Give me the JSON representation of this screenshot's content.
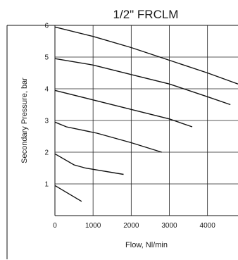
{
  "chart_data": {
    "type": "line",
    "title": "1/2\" FRCLM",
    "xlabel": "Flow, Nl/min",
    "ylabel": "Secondary Pressure, bar",
    "xlim": [
      0,
      4800
    ],
    "ylim": [
      0,
      6
    ],
    "x_ticks": [
      "0",
      "1000",
      "2000",
      "3000",
      "4000"
    ],
    "y_ticks": [
      "1",
      "2",
      "3",
      "4",
      "5",
      "6"
    ],
    "x_tick_values": [
      0,
      1000,
      2000,
      3000,
      4000
    ],
    "y_tick_values": [
      1,
      2,
      3,
      4,
      5,
      6
    ],
    "grid": true,
    "series": [
      {
        "x": [
          0,
          700
        ],
        "y": [
          0.95,
          0.45
        ]
      },
      {
        "x": [
          0,
          500,
          800,
          1800
        ],
        "y": [
          1.95,
          1.6,
          1.5,
          1.3
        ]
      },
      {
        "x": [
          0,
          300,
          1100,
          2000,
          2800
        ],
        "y": [
          2.95,
          2.8,
          2.6,
          2.3,
          2.0
        ]
      },
      {
        "x": [
          0,
          1000,
          2000,
          3000,
          3600
        ],
        "y": [
          3.95,
          3.65,
          3.35,
          3.05,
          2.8
        ]
      },
      {
        "x": [
          0,
          1000,
          2000,
          3000,
          4000,
          4600
        ],
        "y": [
          4.95,
          4.75,
          4.45,
          4.15,
          3.75,
          3.5
        ]
      },
      {
        "x": [
          0,
          1000,
          2000,
          3000,
          4000,
          4800
        ],
        "y": [
          5.95,
          5.65,
          5.3,
          4.9,
          4.5,
          4.15
        ]
      }
    ]
  }
}
